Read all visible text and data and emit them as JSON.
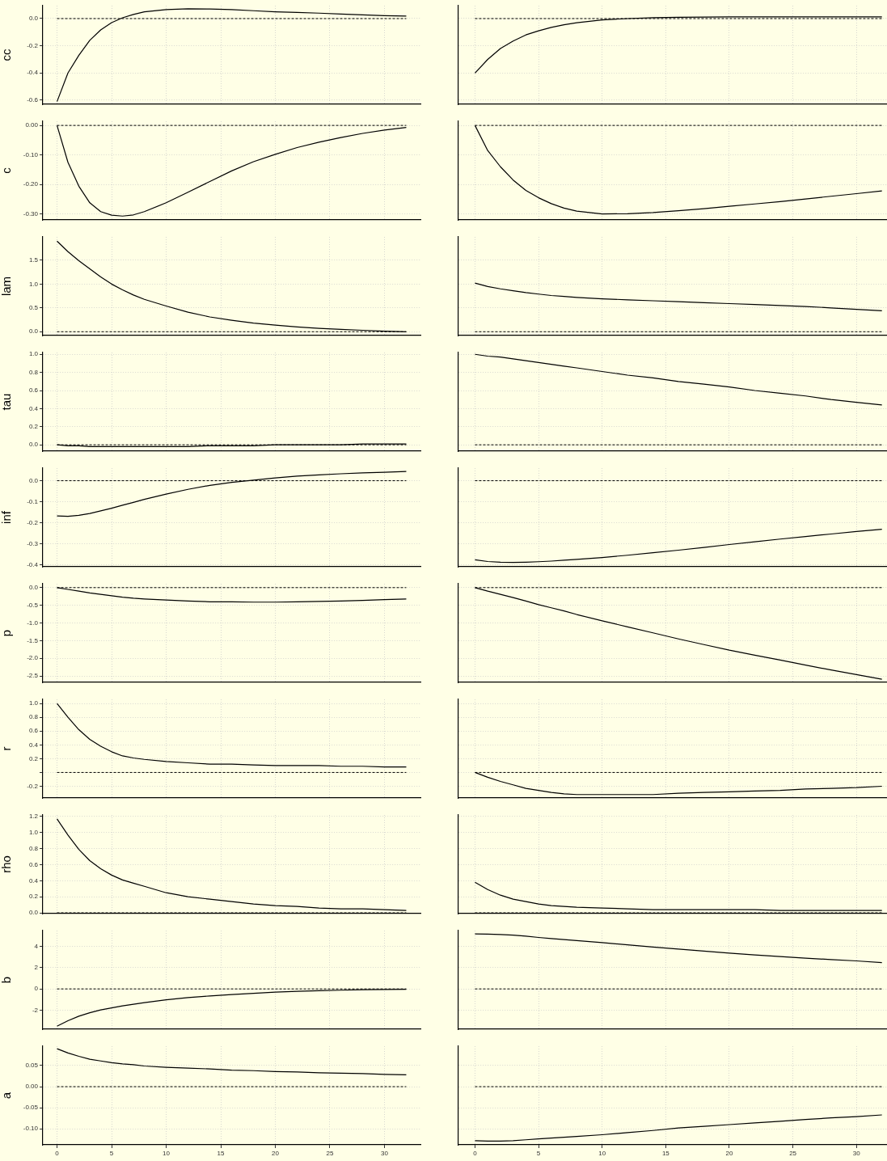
{
  "chart_data": [
    {
      "type": "line",
      "ylabel": "cc",
      "x": [
        0,
        1,
        2,
        3,
        4,
        5,
        6,
        7,
        8,
        10,
        12,
        14,
        16,
        18,
        20,
        22,
        24,
        26,
        28,
        30,
        32
      ],
      "values": [
        -0.61,
        -0.4,
        -0.27,
        -0.16,
        -0.083,
        -0.03,
        0.006,
        0.03,
        0.05,
        0.066,
        0.072,
        0.07,
        0.066,
        0.058,
        0.05,
        0.045,
        0.04,
        0.033,
        0.027,
        0.022,
        0.018
      ],
      "color": "#000000",
      "xlim": [
        -1.3,
        33.3
      ],
      "xticks": [
        0,
        5,
        10,
        15,
        20,
        25,
        30
      ],
      "ylim": [
        -0.63,
        0.095
      ],
      "yticks": [
        {
          "value": -0.6,
          "label": "-0.6"
        },
        {
          "value": -0.4,
          "label": "-0.4"
        },
        {
          "value": -0.2,
          "label": "-0.2"
        },
        {
          "value": 0,
          "label": "0.0"
        }
      ],
      "ref_lines": [
        {
          "axis": "y",
          "value": 0,
          "line_style": "dashed"
        }
      ],
      "grid": true,
      "marker": "none",
      "tick_labels": "y"
    },
    {
      "type": "line",
      "x": [
        0,
        1,
        2,
        3,
        4,
        5,
        6,
        7,
        8,
        10,
        12,
        14,
        16,
        18,
        20,
        22,
        24,
        26,
        28,
        30,
        32
      ],
      "values": [
        -0.4,
        -0.3,
        -0.22,
        -0.165,
        -0.12,
        -0.09,
        -0.065,
        -0.045,
        -0.03,
        -0.01,
        0,
        0.007,
        0.01,
        0.011,
        0.012,
        0.012,
        0.012,
        0.012,
        0.012,
        0.012,
        0.012
      ],
      "color": "#000000",
      "xlim": [
        -1.3,
        32.4
      ],
      "xticks": [
        0,
        5,
        10,
        15,
        20,
        25,
        30
      ],
      "ylim": [
        -0.63,
        0.095
      ],
      "yticks": [
        -0.6,
        -0.4,
        -0.2,
        0
      ],
      "ref_lines": [
        {
          "axis": "y",
          "value": 0,
          "line_style": "dashed"
        }
      ],
      "grid": true,
      "marker": "none",
      "tick_labels": false
    },
    {
      "type": "line",
      "ylabel": "c",
      "x": [
        0,
        1,
        2,
        3,
        4,
        5,
        6,
        7,
        8,
        10,
        12,
        14,
        16,
        18,
        20,
        22,
        24,
        26,
        28,
        30,
        32
      ],
      "values": [
        0,
        -0.125,
        -0.206,
        -0.262,
        -0.292,
        -0.304,
        -0.307,
        -0.303,
        -0.292,
        -0.262,
        -0.226,
        -0.19,
        -0.154,
        -0.123,
        -0.098,
        -0.075,
        -0.057,
        -0.041,
        -0.027,
        -0.016,
        -0.007
      ],
      "color": "#000000",
      "xlim": [
        -1.3,
        33.3
      ],
      "xticks": [
        0,
        5,
        10,
        15,
        20,
        25,
        30
      ],
      "ylim": [
        -0.32,
        0.014
      ],
      "yticks": [
        {
          "value": -0.3,
          "label": "-0.30"
        },
        {
          "value": -0.2,
          "label": "-0.20"
        },
        {
          "value": -0.1,
          "label": "-0.10"
        },
        {
          "value": 0,
          "label": "0.00"
        }
      ],
      "ref_lines": [
        {
          "axis": "y",
          "value": 0,
          "line_style": "dashed"
        }
      ],
      "grid": true,
      "marker": "none",
      "tick_labels": "y"
    },
    {
      "type": "line",
      "x": [
        0,
        1,
        2,
        3,
        4,
        5,
        6,
        7,
        8,
        10,
        12,
        14,
        16,
        18,
        20,
        22,
        24,
        26,
        28,
        30,
        32
      ],
      "values": [
        0,
        -0.085,
        -0.14,
        -0.185,
        -0.22,
        -0.245,
        -0.265,
        -0.28,
        -0.29,
        -0.3,
        -0.299,
        -0.295,
        -0.289,
        -0.282,
        -0.274,
        -0.266,
        -0.258,
        -0.249,
        -0.24,
        -0.231,
        -0.222
      ],
      "color": "#000000",
      "xlim": [
        -1.3,
        32.4
      ],
      "xticks": [
        0,
        5,
        10,
        15,
        20,
        25,
        30
      ],
      "ylim": [
        -0.32,
        0.014
      ],
      "yticks": [
        -0.3,
        -0.2,
        -0.1,
        0
      ],
      "ref_lines": [
        {
          "axis": "y",
          "value": 0,
          "line_style": "dashed"
        }
      ],
      "grid": true,
      "marker": "none",
      "tick_labels": false
    },
    {
      "type": "line",
      "ylabel": "lam",
      "x": [
        0,
        1,
        2,
        3,
        4,
        5,
        6,
        7,
        8,
        10,
        12,
        14,
        16,
        18,
        20,
        22,
        24,
        26,
        28,
        30,
        32
      ],
      "values": [
        1.9,
        1.68,
        1.49,
        1.32,
        1.15,
        1.0,
        0.88,
        0.77,
        0.68,
        0.54,
        0.41,
        0.31,
        0.24,
        0.18,
        0.14,
        0.1,
        0.07,
        0.05,
        0.03,
        0.01,
        0
      ],
      "color": "#000000",
      "xlim": [
        -1.3,
        33.3
      ],
      "xticks": [
        0,
        5,
        10,
        15,
        20,
        25,
        30
      ],
      "ylim": [
        -0.08,
        1.99
      ],
      "yticks": [
        {
          "value": 0,
          "label": "0.0"
        },
        0.5,
        {
          "value": 1,
          "label": "1.0"
        },
        1.5
      ],
      "ref_lines": [
        {
          "axis": "y",
          "value": 0,
          "line_style": "dashed"
        }
      ],
      "grid": true,
      "marker": "none",
      "tick_labels": "y"
    },
    {
      "type": "line",
      "x": [
        0,
        1,
        2,
        3,
        4,
        5,
        6,
        7,
        8,
        10,
        12,
        14,
        16,
        18,
        20,
        22,
        24,
        26,
        28,
        30,
        32
      ],
      "values": [
        1.02,
        0.95,
        0.9,
        0.86,
        0.82,
        0.79,
        0.76,
        0.74,
        0.72,
        0.69,
        0.67,
        0.65,
        0.63,
        0.61,
        0.59,
        0.57,
        0.55,
        0.53,
        0.5,
        0.47,
        0.44
      ],
      "color": "#000000",
      "xlim": [
        -1.3,
        32.4
      ],
      "xticks": [
        0,
        5,
        10,
        15,
        20,
        25,
        30
      ],
      "ylim": [
        -0.08,
        1.99
      ],
      "yticks": [
        0,
        0.5,
        1,
        1.5
      ],
      "ref_lines": [
        {
          "axis": "y",
          "value": 0,
          "line_style": "dashed"
        }
      ],
      "grid": true,
      "marker": "none",
      "tick_labels": false
    },
    {
      "type": "line",
      "ylabel": "tau",
      "x": [
        0,
        1,
        2,
        3,
        4,
        5,
        6,
        7,
        8,
        10,
        12,
        14,
        16,
        18,
        20,
        22,
        24,
        26,
        28,
        30,
        32
      ],
      "values": [
        0,
        -0.01,
        -0.01,
        -0.02,
        -0.02,
        -0.02,
        -0.02,
        -0.02,
        -0.02,
        -0.02,
        -0.02,
        -0.01,
        -0.01,
        -0.01,
        0,
        0,
        0,
        0,
        0.01,
        0.01,
        0.01
      ],
      "color": "#000000",
      "xlim": [
        -1.3,
        33.3
      ],
      "xticks": [
        0,
        5,
        10,
        15,
        20,
        25,
        30
      ],
      "ylim": [
        -0.07,
        1.02
      ],
      "yticks": [
        {
          "value": 0,
          "label": "0.0"
        },
        0.2,
        0.4,
        0.6,
        0.8,
        {
          "value": 1,
          "label": "1.0"
        }
      ],
      "ref_lines": [
        {
          "axis": "y",
          "value": 0,
          "line_style": "dashed"
        }
      ],
      "grid": true,
      "marker": "none",
      "tick_labels": "y"
    },
    {
      "type": "line",
      "x": [
        0,
        1,
        2,
        3,
        4,
        5,
        6,
        7,
        8,
        10,
        12,
        14,
        16,
        18,
        20,
        22,
        24,
        26,
        28,
        30,
        32
      ],
      "values": [
        1.0,
        0.98,
        0.97,
        0.95,
        0.93,
        0.91,
        0.89,
        0.87,
        0.85,
        0.81,
        0.77,
        0.74,
        0.7,
        0.67,
        0.64,
        0.6,
        0.57,
        0.54,
        0.5,
        0.47,
        0.44
      ],
      "color": "#000000",
      "xlim": [
        -1.3,
        32.4
      ],
      "xticks": [
        0,
        5,
        10,
        15,
        20,
        25,
        30
      ],
      "ylim": [
        -0.07,
        1.02
      ],
      "yticks": [
        0,
        0.2,
        0.4,
        0.6,
        0.8,
        1
      ],
      "ref_lines": [
        {
          "axis": "y",
          "value": 0,
          "line_style": "dashed"
        }
      ],
      "grid": true,
      "marker": "none",
      "tick_labels": false
    },
    {
      "type": "line",
      "ylabel": "inf",
      "x": [
        0,
        1,
        2,
        3,
        4,
        5,
        6,
        7,
        8,
        10,
        12,
        14,
        16,
        18,
        20,
        22,
        24,
        26,
        28,
        30,
        32
      ],
      "values": [
        -0.168,
        -0.17,
        -0.165,
        -0.156,
        -0.144,
        -0.131,
        -0.117,
        -0.103,
        -0.089,
        -0.064,
        -0.041,
        -0.022,
        -0.008,
        0.003,
        0.013,
        0.022,
        0.028,
        0.033,
        0.037,
        0.04,
        0.044
      ],
      "color": "#000000",
      "xlim": [
        -1.3,
        33.3
      ],
      "xticks": [
        0,
        5,
        10,
        15,
        20,
        25,
        30
      ],
      "ylim": [
        -0.41,
        0.06
      ],
      "yticks": [
        -0.4,
        -0.3,
        -0.2,
        -0.1,
        {
          "value": 0,
          "label": "0.0"
        }
      ],
      "ref_lines": [
        {
          "axis": "y",
          "value": 0,
          "line_style": "dashed"
        }
      ],
      "grid": true,
      "marker": "none",
      "tick_labels": "y"
    },
    {
      "type": "line",
      "x": [
        0,
        1,
        2,
        3,
        4,
        5,
        6,
        7,
        8,
        10,
        12,
        14,
        16,
        18,
        20,
        22,
        24,
        26,
        28,
        30,
        32
      ],
      "values": [
        -0.377,
        -0.385,
        -0.388,
        -0.389,
        -0.388,
        -0.386,
        -0.383,
        -0.379,
        -0.375,
        -0.366,
        -0.355,
        -0.343,
        -0.331,
        -0.318,
        -0.304,
        -0.291,
        -0.278,
        -0.266,
        -0.254,
        -0.242,
        -0.231
      ],
      "color": "#000000",
      "xlim": [
        -1.3,
        32.4
      ],
      "xticks": [
        0,
        5,
        10,
        15,
        20,
        25,
        30
      ],
      "ylim": [
        -0.41,
        0.06
      ],
      "yticks": [
        -0.4,
        -0.3,
        -0.2,
        -0.1,
        0
      ],
      "ref_lines": [
        {
          "axis": "y",
          "value": 0,
          "line_style": "dashed"
        }
      ],
      "grid": true,
      "marker": "none",
      "tick_labels": false
    },
    {
      "type": "line",
      "ylabel": "p",
      "x": [
        0,
        1,
        2,
        3,
        4,
        5,
        6,
        7,
        8,
        10,
        12,
        14,
        16,
        18,
        20,
        22,
        24,
        26,
        28,
        30,
        32
      ],
      "values": [
        0,
        -0.05,
        -0.1,
        -0.15,
        -0.19,
        -0.23,
        -0.27,
        -0.3,
        -0.32,
        -0.35,
        -0.38,
        -0.4,
        -0.4,
        -0.41,
        -0.41,
        -0.4,
        -0.39,
        -0.38,
        -0.36,
        -0.34,
        -0.32
      ],
      "color": "#000000",
      "xlim": [
        -1.3,
        33.3
      ],
      "xticks": [
        0,
        5,
        10,
        15,
        20,
        25,
        30
      ],
      "ylim": [
        -2.68,
        0.11
      ],
      "yticks": [
        -2.5,
        {
          "value": -2,
          "label": "-2.0"
        },
        -1.5,
        {
          "value": -1,
          "label": "-1.0"
        },
        -0.5,
        {
          "value": 0,
          "label": "0.0"
        }
      ],
      "ref_lines": [
        {
          "axis": "y",
          "value": 0,
          "line_style": "dashed"
        }
      ],
      "grid": true,
      "marker": "none",
      "tick_labels": "y"
    },
    {
      "type": "line",
      "x": [
        0,
        1,
        2,
        3,
        4,
        5,
        6,
        7,
        8,
        10,
        12,
        14,
        16,
        18,
        20,
        22,
        24,
        26,
        28,
        30,
        32
      ],
      "values": [
        0,
        -0.1,
        -0.19,
        -0.28,
        -0.38,
        -0.48,
        -0.57,
        -0.66,
        -0.76,
        -0.94,
        -1.11,
        -1.28,
        -1.45,
        -1.61,
        -1.77,
        -1.91,
        -2.05,
        -2.19,
        -2.33,
        -2.46,
        -2.59
      ],
      "color": "#000000",
      "xlim": [
        -1.3,
        32.4
      ],
      "xticks": [
        0,
        5,
        10,
        15,
        20,
        25,
        30
      ],
      "ylim": [
        -2.68,
        0.11
      ],
      "yticks": [
        -2.5,
        -2,
        -1.5,
        -1,
        -0.5,
        0
      ],
      "ref_lines": [
        {
          "axis": "y",
          "value": 0,
          "line_style": "dashed"
        }
      ],
      "grid": true,
      "marker": "none",
      "tick_labels": false
    },
    {
      "type": "line",
      "ylabel": "r",
      "x": [
        0,
        1,
        2,
        3,
        4,
        5,
        6,
        7,
        8,
        10,
        12,
        14,
        16,
        18,
        20,
        22,
        24,
        26,
        28,
        30,
        32
      ],
      "values": [
        1.0,
        0.8,
        0.62,
        0.48,
        0.38,
        0.3,
        0.24,
        0.21,
        0.19,
        0.16,
        0.14,
        0.12,
        0.12,
        0.11,
        0.1,
        0.1,
        0.1,
        0.09,
        0.09,
        0.08,
        0.08
      ],
      "color": "#000000",
      "xlim": [
        -1.3,
        33.3
      ],
      "xticks": [
        0,
        5,
        10,
        15,
        20,
        25,
        30
      ],
      "ylim": [
        -0.37,
        1.06
      ],
      "yticks": [
        -0.2,
        {
          "value": 0,
          "label": null
        },
        0.2,
        0.4,
        0.6,
        0.8,
        {
          "value": 1,
          "label": "1.0"
        }
      ],
      "ref_lines": [
        {
          "axis": "y",
          "value": 0,
          "line_style": "dashed"
        }
      ],
      "grid": true,
      "marker": "none",
      "tick_labels": "y"
    },
    {
      "type": "line",
      "x": [
        0,
        1,
        2,
        3,
        4,
        5,
        6,
        7,
        8,
        10,
        12,
        14,
        16,
        18,
        20,
        22,
        24,
        26,
        28,
        30,
        32
      ],
      "values": [
        0,
        -0.07,
        -0.13,
        -0.18,
        -0.23,
        -0.26,
        -0.29,
        -0.31,
        -0.32,
        -0.32,
        -0.32,
        -0.32,
        -0.3,
        -0.29,
        -0.28,
        -0.27,
        -0.26,
        -0.24,
        -0.23,
        -0.22,
        -0.2
      ],
      "color": "#000000",
      "xlim": [
        -1.3,
        32.4
      ],
      "xticks": [
        0,
        5,
        10,
        15,
        20,
        25,
        30
      ],
      "ylim": [
        -0.37,
        1.06
      ],
      "yticks": [
        -0.2,
        0,
        0.2,
        0.4,
        0.6,
        0.8,
        1
      ],
      "ref_lines": [
        {
          "axis": "y",
          "value": 0,
          "line_style": "dashed"
        }
      ],
      "grid": true,
      "marker": "none",
      "tick_labels": false
    },
    {
      "type": "line",
      "ylabel": "rho",
      "x": [
        0,
        1,
        2,
        3,
        4,
        5,
        6,
        7,
        8,
        10,
        12,
        14,
        16,
        18,
        20,
        22,
        24,
        26,
        28,
        30,
        32
      ],
      "values": [
        1.17,
        0.97,
        0.79,
        0.65,
        0.55,
        0.47,
        0.41,
        0.37,
        0.33,
        0.25,
        0.2,
        0.17,
        0.14,
        0.11,
        0.09,
        0.08,
        0.06,
        0.05,
        0.05,
        0.04,
        0.03
      ],
      "color": "#000000",
      "xlim": [
        -1.3,
        33.3
      ],
      "xticks": [
        0,
        5,
        10,
        15,
        20,
        25,
        30
      ],
      "ylim": [
        -0.01,
        1.22
      ],
      "yticks": [
        {
          "value": 0,
          "label": "0.0"
        },
        0.2,
        0.4,
        0.6,
        0.8,
        {
          "value": 1,
          "label": "1.0"
        },
        1.2
      ],
      "ref_lines": [
        {
          "axis": "y",
          "value": 0,
          "line_style": "dashed"
        }
      ],
      "grid": true,
      "marker": "none",
      "tick_labels": "y"
    },
    {
      "type": "line",
      "x": [
        0,
        1,
        2,
        3,
        4,
        5,
        6,
        7,
        8,
        10,
        12,
        14,
        16,
        18,
        20,
        22,
        24,
        26,
        28,
        30,
        32
      ],
      "values": [
        0.38,
        0.29,
        0.22,
        0.17,
        0.14,
        0.11,
        0.09,
        0.08,
        0.07,
        0.06,
        0.05,
        0.04,
        0.04,
        0.04,
        0.04,
        0.04,
        0.03,
        0.03,
        0.03,
        0.03,
        0.03
      ],
      "color": "#000000",
      "xlim": [
        -1.3,
        32.4
      ],
      "xticks": [
        0,
        5,
        10,
        15,
        20,
        25,
        30
      ],
      "ylim": [
        -0.01,
        1.22
      ],
      "yticks": [
        0,
        0.2,
        0.4,
        0.6,
        0.8,
        1,
        1.2
      ],
      "ref_lines": [
        {
          "axis": "y",
          "value": 0,
          "line_style": "dashed"
        }
      ],
      "grid": true,
      "marker": "none",
      "tick_labels": false
    },
    {
      "type": "line",
      "ylabel": "b",
      "x": [
        0,
        1,
        2,
        3,
        4,
        5,
        6,
        7,
        8,
        10,
        12,
        14,
        16,
        18,
        20,
        22,
        24,
        26,
        28,
        30,
        32
      ],
      "values": [
        -3.52,
        -3.0,
        -2.57,
        -2.25,
        -1.98,
        -1.79,
        -1.6,
        -1.44,
        -1.3,
        -1.02,
        -0.82,
        -0.66,
        -0.53,
        -0.41,
        -0.31,
        -0.23,
        -0.17,
        -0.12,
        -0.08,
        -0.05,
        -0.03
      ],
      "color": "#000000",
      "xlim": [
        -1.3,
        33.3
      ],
      "xticks": [
        0,
        5,
        10,
        15,
        20,
        25,
        30
      ],
      "ylim": [
        -3.8,
        5.5
      ],
      "yticks": [
        -2,
        0,
        2,
        4
      ],
      "ref_lines": [
        {
          "axis": "y",
          "value": 0,
          "line_style": "dashed"
        }
      ],
      "grid": true,
      "marker": "none",
      "tick_labels": "y"
    },
    {
      "type": "line",
      "x": [
        0,
        1,
        2,
        3,
        4,
        5,
        6,
        7,
        8,
        10,
        12,
        14,
        16,
        18,
        20,
        22,
        24,
        26,
        28,
        30,
        32
      ],
      "values": [
        5.18,
        5.17,
        5.13,
        5.07,
        4.97,
        4.85,
        4.75,
        4.65,
        4.55,
        4.36,
        4.15,
        3.94,
        3.75,
        3.56,
        3.38,
        3.21,
        3.05,
        2.9,
        2.77,
        2.64,
        2.48
      ],
      "color": "#000000",
      "xlim": [
        -1.3,
        32.4
      ],
      "xticks": [
        0,
        5,
        10,
        15,
        20,
        25,
        30
      ],
      "ylim": [
        -3.8,
        5.5
      ],
      "yticks": [
        -2,
        0,
        2,
        4
      ],
      "ref_lines": [
        {
          "axis": "y",
          "value": 0,
          "line_style": "dashed"
        }
      ],
      "grid": true,
      "marker": "none",
      "tick_labels": false
    },
    {
      "type": "line",
      "ylabel": "a",
      "x": [
        0,
        1,
        2,
        3,
        4,
        5,
        6,
        7,
        8,
        10,
        12,
        14,
        16,
        18,
        20,
        22,
        24,
        26,
        28,
        30,
        32
      ],
      "values": [
        0.09,
        0.08,
        0.072,
        0.065,
        0.061,
        0.057,
        0.054,
        0.052,
        0.049,
        0.046,
        0.044,
        0.042,
        0.039,
        0.038,
        0.036,
        0.035,
        0.033,
        0.032,
        0.031,
        0.029,
        0.028
      ],
      "color": "#000000",
      "xlim": [
        -1.3,
        33.3
      ],
      "xticks": [
        0,
        5,
        10,
        15,
        20,
        25,
        30
      ],
      "ylim": [
        -0.138,
        0.096
      ],
      "yticks": [
        {
          "value": -0.1,
          "label": "-0.10"
        },
        -0.05,
        {
          "value": 0,
          "label": "0.00"
        },
        0.05
      ],
      "ref_lines": [
        {
          "axis": "y",
          "value": 0,
          "line_style": "dashed"
        }
      ],
      "grid": true,
      "marker": "none"
    },
    {
      "type": "line",
      "x": [
        0,
        1,
        2,
        3,
        4,
        5,
        6,
        7,
        8,
        10,
        12,
        14,
        16,
        18,
        20,
        22,
        24,
        26,
        28,
        30,
        32
      ],
      "values": [
        -0.128,
        -0.129,
        -0.129,
        -0.128,
        -0.126,
        -0.124,
        -0.122,
        -0.12,
        -0.118,
        -0.114,
        -0.109,
        -0.104,
        -0.098,
        -0.094,
        -0.09,
        -0.086,
        -0.082,
        -0.078,
        -0.074,
        -0.071,
        -0.067
      ],
      "color": "#000000",
      "xlim": [
        -1.3,
        32.4
      ],
      "xticks": [
        0,
        5,
        10,
        15,
        20,
        25,
        30
      ],
      "ylim": [
        -0.138,
        0.096
      ],
      "yticks": [
        -0.1,
        -0.05,
        0,
        0.05
      ],
      "ref_lines": [
        {
          "axis": "y",
          "value": 0,
          "line_style": "dashed"
        }
      ],
      "grid": true,
      "marker": "none",
      "tick_labels": "x"
    }
  ]
}
